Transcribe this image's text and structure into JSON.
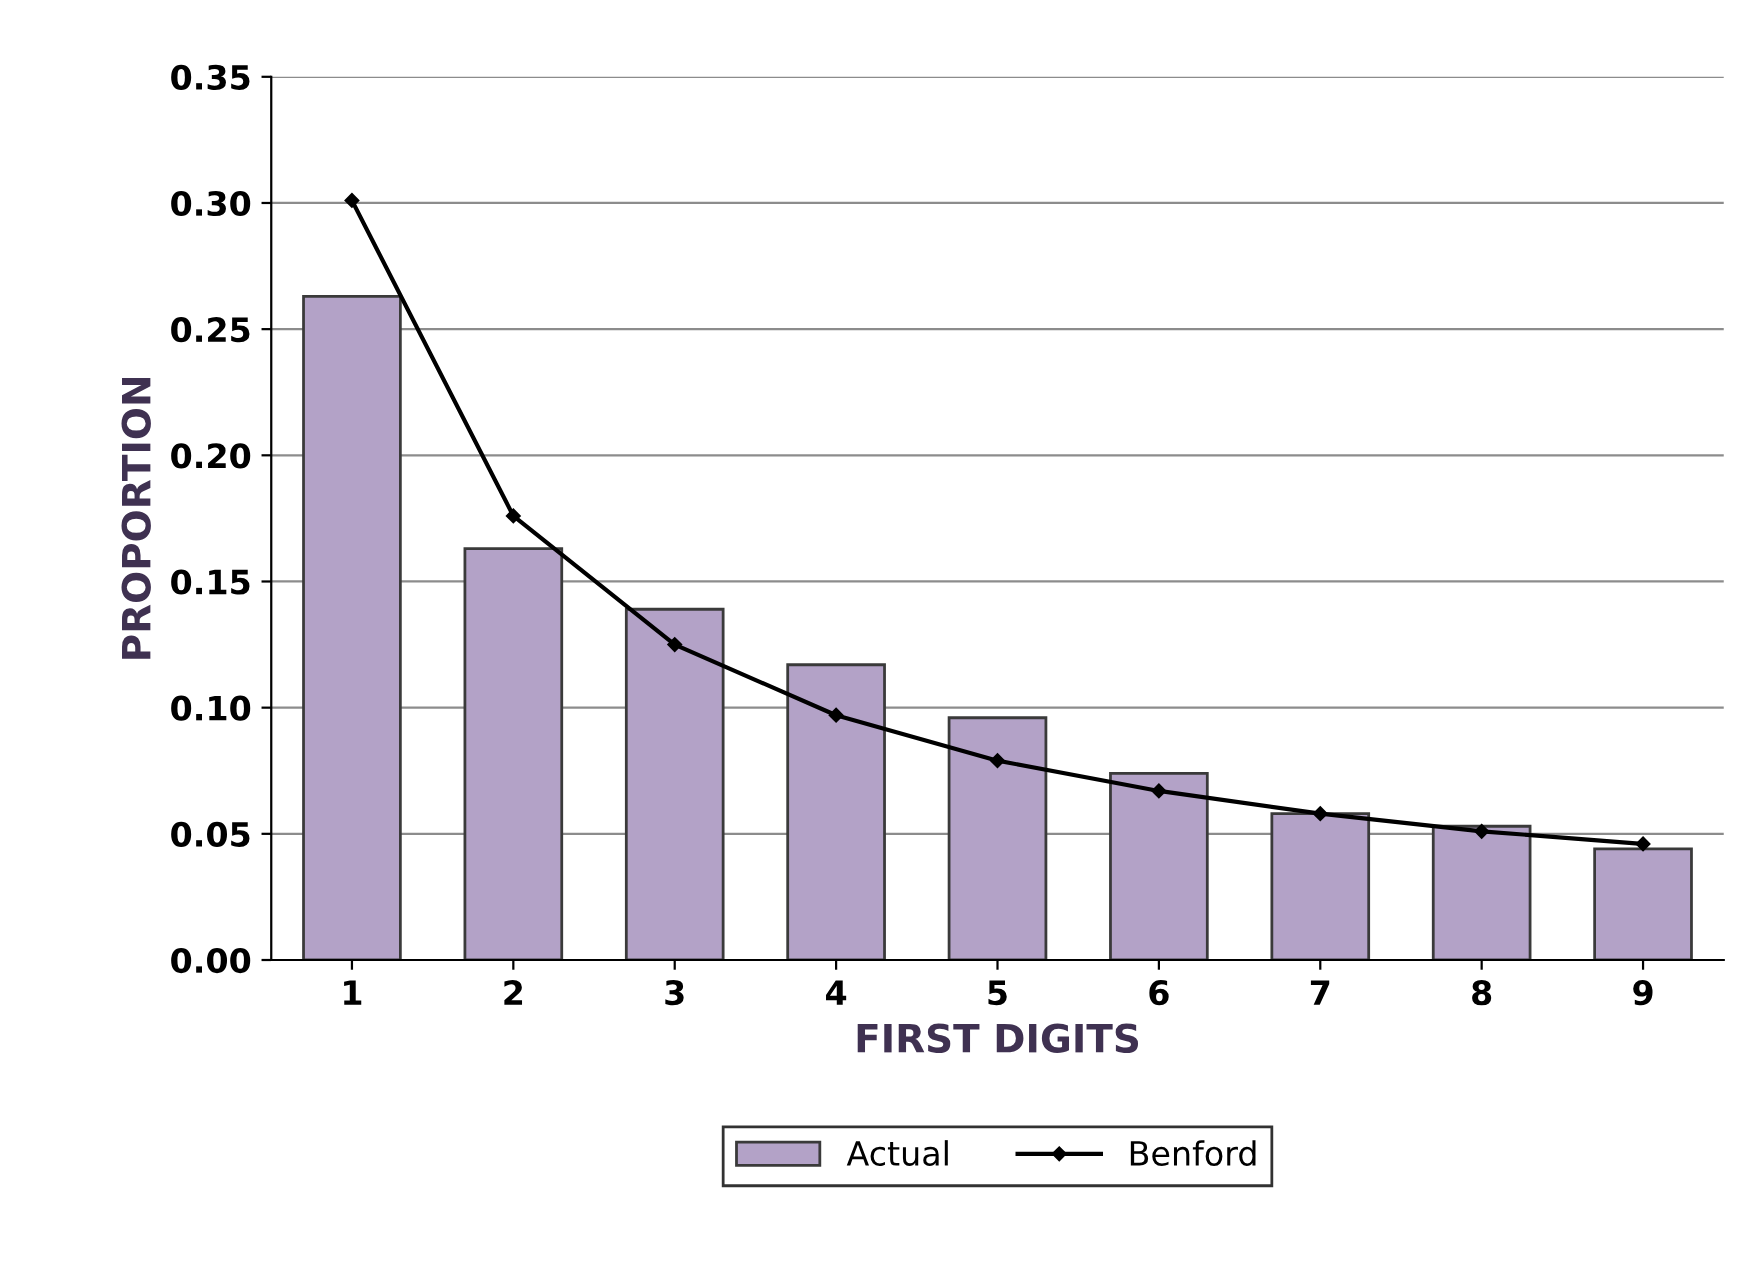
{
  "chart_data": {
    "type": "bar",
    "xlabel": "FIRST DIGITS",
    "ylabel": "PROPORTION",
    "categories": [
      "1",
      "2",
      "3",
      "4",
      "5",
      "6",
      "7",
      "8",
      "9"
    ],
    "series": [
      {
        "name": "Actual",
        "color": "#b3a2c7",
        "values": [
          0.263,
          0.163,
          0.139,
          0.117,
          0.096,
          0.074,
          0.058,
          0.053,
          0.044
        ]
      },
      {
        "name": "Benford",
        "type": "line",
        "color": "#000000",
        "marker": "diamond",
        "values": [
          0.301,
          0.176,
          0.125,
          0.097,
          0.079,
          0.067,
          0.058,
          0.051,
          0.046
        ]
      }
    ],
    "ylim": [
      0,
      0.35
    ],
    "yticks": [
      {
        "value": 0,
        "label": "0.00"
      },
      {
        "value": 0.05,
        "label": "0.05"
      },
      {
        "value": 0.1,
        "label": "0.10"
      },
      {
        "value": 0.15,
        "label": "0.15"
      },
      {
        "value": 0.2,
        "label": "0.20"
      },
      {
        "value": 0.25,
        "label": "0.25"
      },
      {
        "value": 0.3,
        "label": "0.30"
      },
      {
        "value": 0.35,
        "label": "0.35"
      }
    ],
    "grid": "y",
    "legend": "bottom"
  }
}
